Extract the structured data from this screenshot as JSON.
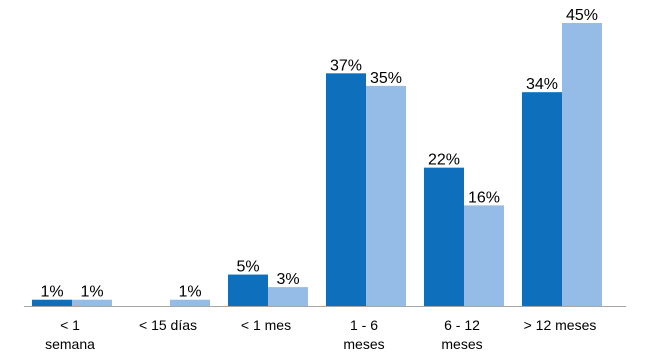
{
  "chart_data": {
    "type": "bar",
    "categories": [
      [
        "< 1",
        "semana"
      ],
      [
        "< 15 días"
      ],
      [
        "< 1 mes"
      ],
      [
        "1 - 6",
        "meses"
      ],
      [
        "6 - 12",
        "meses"
      ],
      [
        "> 12 meses"
      ]
    ],
    "series": [
      {
        "values": [
          1,
          null,
          5,
          37,
          22,
          34
        ],
        "labels": [
          "1%",
          "",
          "5%",
          "37%",
          "22%",
          "34%"
        ],
        "color": "#0e70bd"
      },
      {
        "values": [
          1,
          1,
          3,
          35,
          16,
          45
        ],
        "labels": [
          "1%",
          "1%",
          "3%",
          "35%",
          "16%",
          "45%"
        ],
        "color": "#94bce6"
      }
    ],
    "ylim": [
      0,
      45
    ],
    "grid": false,
    "legend": "none",
    "axis_color": "#a6a6a6"
  }
}
